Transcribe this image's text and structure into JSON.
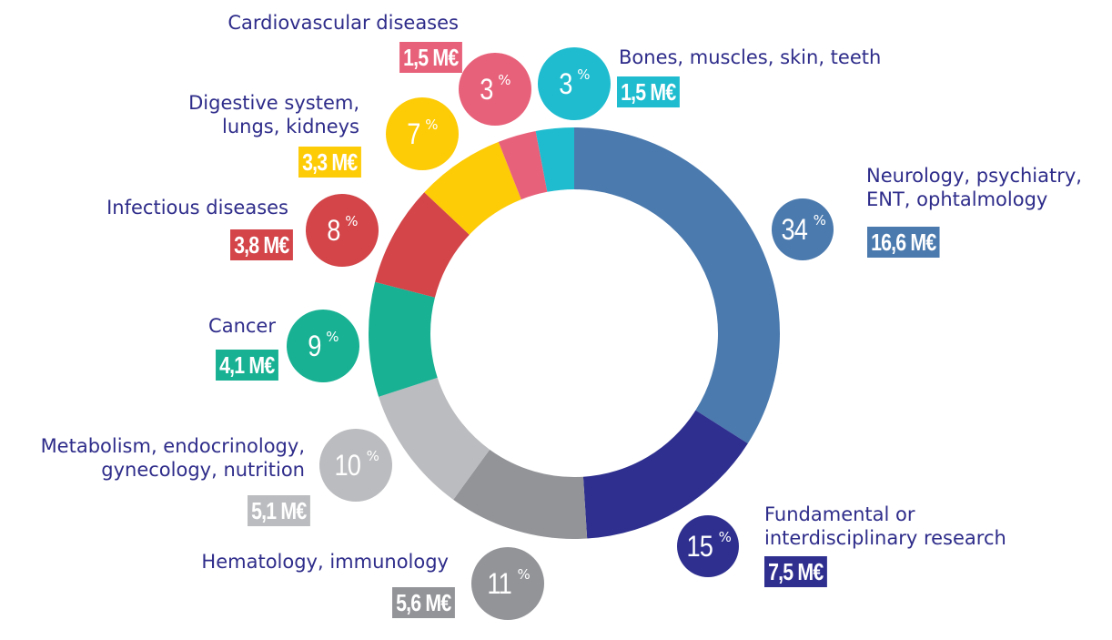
{
  "chart_data": {
    "type": "donut",
    "unit": "%",
    "segments": [
      {
        "label": "Neurology, psychiatry, ENT, ophtalmology",
        "value": 34,
        "amount": "16,6 M€",
        "color": "#4b7aae"
      },
      {
        "label": "Fundamental or interdisciplinary research",
        "value": 15,
        "amount": "7,5 M€",
        "color": "#2e2f8f"
      },
      {
        "label": "Hematology, immunology",
        "value": 11,
        "amount": "5,6 M€",
        "color": "#939498"
      },
      {
        "label": "Metabolism, endocrinology, gynecology, nutrition",
        "value": 10,
        "amount": "5,1 M€",
        "color": "#bbbcbf"
      },
      {
        "label": "Cancer",
        "value": 9,
        "amount": "4,1 M€",
        "color": "#19b193"
      },
      {
        "label": "Infectious diseases",
        "value": 8,
        "amount": "3,8 M€",
        "color": "#d34549"
      },
      {
        "label": "Digestive system, lungs, kidneys",
        "value": 7,
        "amount": "3,3 M€",
        "color": "#fecb07"
      },
      {
        "label": "Cardiovascular diseases",
        "value": 3,
        "amount": "1,5 M€",
        "color": "#e8617a"
      },
      {
        "label": "Bones, muscles, skin, teeth",
        "value": 3,
        "amount": "1,5 M€",
        "color": "#1fbccf"
      }
    ]
  }
}
